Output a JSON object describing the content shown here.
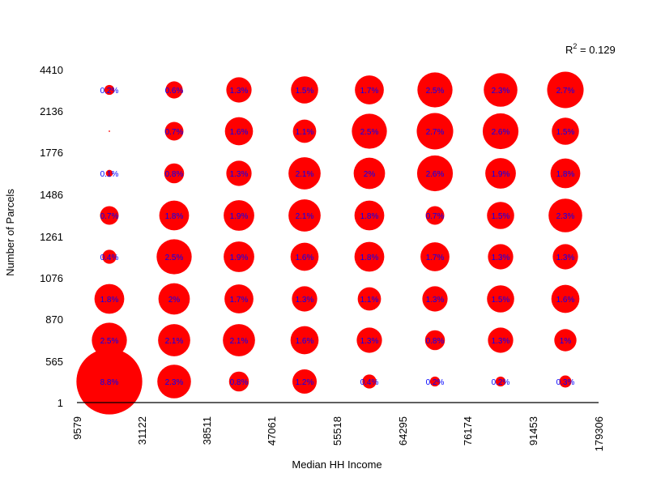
{
  "chart_data": {
    "type": "scatter",
    "subtype": "bubble-grid",
    "xlabel": "Median HH Income",
    "ylabel": "Number of Parcels",
    "x_ticks": [
      "9579",
      "31122",
      "38511",
      "47061",
      "55518",
      "64295",
      "76174",
      "91453",
      "179306"
    ],
    "y_ticks": [
      "1",
      "565",
      "870",
      "1076",
      "1261",
      "1486",
      "1776",
      "2136",
      "4410"
    ],
    "annotation": {
      "r2_prefix": "R",
      "r2_sup": "2",
      "r2_rest": " = 0.129"
    },
    "bubble_color": "#ff0000",
    "label_color": "#0000ff",
    "grid": false,
    "x_bins": [
      "9579-31122",
      "31122-38511",
      "38511-47061",
      "47061-55518",
      "55518-64295",
      "64295-76174",
      "76174-91453",
      "91453-179306"
    ],
    "y_bins": [
      "1-565",
      "565-870",
      "870-1076",
      "1076-1261",
      "1261-1486",
      "1486-1776",
      "1776-2136",
      "2136-4410"
    ],
    "values": [
      [
        8.8,
        2.3,
        0.8,
        1.2,
        0.4,
        0.2,
        0.2,
        0.3
      ],
      [
        2.5,
        2.1,
        2.1,
        1.6,
        1.3,
        0.8,
        1.3,
        1.0
      ],
      [
        1.8,
        2.0,
        1.7,
        1.3,
        1.1,
        1.3,
        1.5,
        1.6
      ],
      [
        0.4,
        2.5,
        1.9,
        1.6,
        1.8,
        1.7,
        1.3,
        1.3
      ],
      [
        0.7,
        1.8,
        1.9,
        2.1,
        1.8,
        0.7,
        1.5,
        2.3
      ],
      [
        0.1,
        0.8,
        1.3,
        2.1,
        2.0,
        2.6,
        1.9,
        1.8
      ],
      [
        0.0,
        0.7,
        1.6,
        1.1,
        2.5,
        2.7,
        2.6,
        1.5
      ],
      [
        0.2,
        0.6,
        1.3,
        1.5,
        1.7,
        2.5,
        2.3,
        2.7
      ]
    ],
    "labels": [
      [
        "8.8%",
        "2.3%",
        "0.8%",
        "1.2%",
        "0.4%",
        "0.2%",
        "0.2%",
        "0.3%"
      ],
      [
        "2.5%",
        "2.1%",
        "2.1%",
        "1.6%",
        "1.3%",
        "0.8%",
        "1.3%",
        "1%"
      ],
      [
        "1.8%",
        "2%",
        "1.7%",
        "1.3%",
        "1.1%",
        "1.3%",
        "1.5%",
        "1.6%"
      ],
      [
        "0.4%",
        "2.5%",
        "1.9%",
        "1.6%",
        "1.8%",
        "1.7%",
        "1.3%",
        "1.3%"
      ],
      [
        "0.7%",
        "1.8%",
        "1.9%",
        "2.1%",
        "1.8%",
        "0.7%",
        "1.5%",
        "2.3%"
      ],
      [
        "0.1%",
        "0.8%",
        "1.3%",
        "2.1%",
        "2%",
        "2.6%",
        "1.9%",
        "1.8%"
      ],
      [
        "",
        "0.7%",
        "1.6%",
        "1.1%",
        "2.5%",
        "2.7%",
        "2.6%",
        "1.5%"
      ],
      [
        "0.2%",
        "0.6%",
        "1.3%",
        "1.5%",
        "1.7%",
        "2.5%",
        "2.3%",
        "2.7%"
      ]
    ]
  }
}
